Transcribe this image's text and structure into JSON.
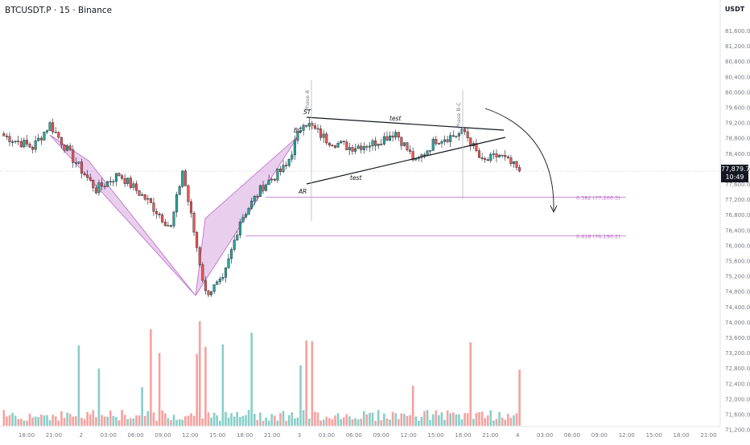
{
  "header": {
    "title": "BTCUSDT.P · 15 · Binance"
  },
  "currency": "USDT",
  "price_badge": {
    "price": "77,879.7",
    "countdown": "10:49"
  },
  "colors": {
    "up": "#26a69a",
    "down": "#ef5350",
    "pattern": "#ba68c8",
    "line": "#131722"
  },
  "chart_data": {
    "type": "candlestick",
    "y_ticks": [
      "81,600.0",
      "81,200.0",
      "80,800.0",
      "80,400.0",
      "80,000.0",
      "79,600.0",
      "79,200.0",
      "78,800.0",
      "78,400.0",
      "78,000.0",
      "77,600.0",
      "77,200.0",
      "76,800.0",
      "76,400.0",
      "76,000.0",
      "75,600.0",
      "75,200.0",
      "74,800.0",
      "74,400.0",
      "74,000.0",
      "73,600.0",
      "73,200.0",
      "72,800.0",
      "72,400.0",
      "72,000.0",
      "71,600.0",
      "71,200.0"
    ],
    "x_ticks": [
      "18:00",
      "21:00",
      "2",
      "03:00",
      "06:00",
      "09:00",
      "12:00",
      "15:00",
      "18:00",
      "21:00",
      "3",
      "03:00",
      "06:00",
      "09:00",
      "12:00",
      "15:00",
      "18:00",
      "21:00",
      "4",
      "03:00",
      "06:00",
      "09:00",
      "12:00",
      "15:00",
      "18:00",
      "21:00"
    ],
    "last_price": 77879.7,
    "ylim": [
      71000,
      81800
    ],
    "price_path": [
      {
        "bar": 0,
        "price": 78800
      },
      {
        "bar": 10,
        "price": 78500
      },
      {
        "bar": 16,
        "price": 79100
      },
      {
        "bar": 24,
        "price": 78200
      },
      {
        "bar": 32,
        "price": 77400
      },
      {
        "bar": 40,
        "price": 77800
      },
      {
        "bar": 50,
        "price": 77100
      },
      {
        "bar": 58,
        "price": 76400
      },
      {
        "bar": 62,
        "price": 77900
      },
      {
        "bar": 70,
        "price": 74700
      },
      {
        "bar": 76,
        "price": 75000
      },
      {
        "bar": 82,
        "price": 76600
      },
      {
        "bar": 90,
        "price": 77500
      },
      {
        "bar": 98,
        "price": 78000
      },
      {
        "bar": 104,
        "price": 79200
      },
      {
        "bar": 112,
        "price": 78700
      },
      {
        "bar": 120,
        "price": 78500
      },
      {
        "bar": 128,
        "price": 78600
      },
      {
        "bar": 136,
        "price": 78900
      },
      {
        "bar": 143,
        "price": 78100
      },
      {
        "bar": 150,
        "price": 78700
      },
      {
        "bar": 156,
        "price": 78800
      },
      {
        "bar": 160,
        "price": 78900
      },
      {
        "bar": 166,
        "price": 78100
      },
      {
        "bar": 172,
        "price": 78300
      },
      {
        "bar": 179,
        "price": 77880
      }
    ],
    "annotations": {
      "labels": [
        "ST",
        "BC",
        "AR",
        "test",
        "test"
      ],
      "phases": [
        "Phase A",
        "Phase B-C"
      ],
      "fib": [
        {
          "label": "0.382 (77,200.3)",
          "price": 77200.3
        },
        {
          "label": "0.618 (76,190.2)",
          "price": 76190.2
        }
      ]
    }
  }
}
